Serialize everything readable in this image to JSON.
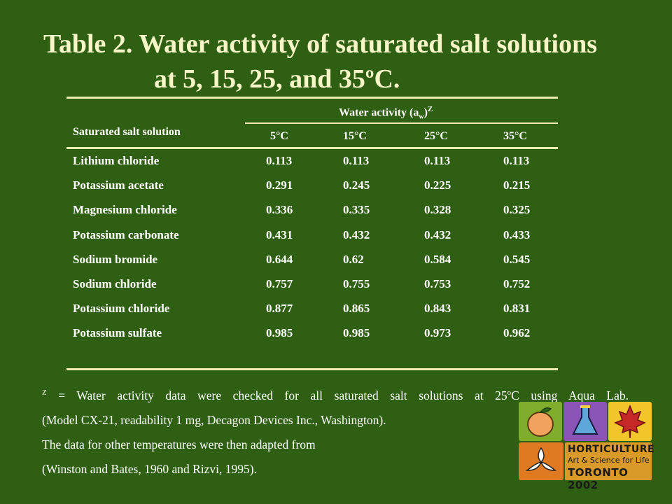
{
  "title": {
    "line1": "Table 2. Water activity of saturated salt solutions",
    "line2": "at 5, 15, 25, and 35ºC."
  },
  "table": {
    "row_header": "Saturated salt solution",
    "group_header": "Water activity (a",
    "group_header_sub": "w",
    "group_header_close": ")",
    "group_header_sup": "Z",
    "columns": [
      "5°C",
      "15°C",
      "25°C",
      "35°C"
    ],
    "rows": [
      {
        "name": "Lithium chloride",
        "values": [
          "0.113",
          "0.113",
          "0.113",
          "0.113"
        ]
      },
      {
        "name": "Potassium acetate",
        "values": [
          "0.291",
          "0.245",
          "0.225",
          "0.215"
        ]
      },
      {
        "name": "Magnesium chloride",
        "values": [
          "0.336",
          "0.335",
          "0.328",
          "0.325"
        ]
      },
      {
        "name": "Potassium carbonate",
        "values": [
          "0.431",
          "0.432",
          "0.432",
          "0.433"
        ]
      },
      {
        "name": "Sodium bromide",
        "values": [
          "0.644",
          "0.62",
          "0.584",
          "0.545"
        ]
      },
      {
        "name": "Sodium chloride",
        "values": [
          "0.757",
          "0.755",
          "0.753",
          "0.752"
        ]
      },
      {
        "name": "Potassium chloride",
        "values": [
          "0.877",
          "0.865",
          "0.843",
          "0.831"
        ]
      },
      {
        "name": "Potassium sulfate",
        "values": [
          "0.985",
          "0.985",
          "0.973",
          "0.962"
        ]
      }
    ]
  },
  "footnote": {
    "marker": "Z",
    "line1_a": " = Water activity data were checked for all saturated salt solutions at 25",
    "line1_sup": "o",
    "line1_b": "C using Aqua Lab.",
    "line2": "(Model CX-21, readability 1 mg, Decagon Devices Inc., Washington).",
    "line3": "The data for other temperatures were then adapted from",
    "line4": "(Winston and Bates, 1960 and Rizvi, 1995)."
  },
  "logo": {
    "word1": "HORTICULTURE",
    "word2": "Art & Science for Life",
    "word3": "TORONTO 2002"
  },
  "colors": {
    "background": "#2f5f12",
    "title": "#f8f6c8",
    "rule": "#f0ecb4"
  }
}
